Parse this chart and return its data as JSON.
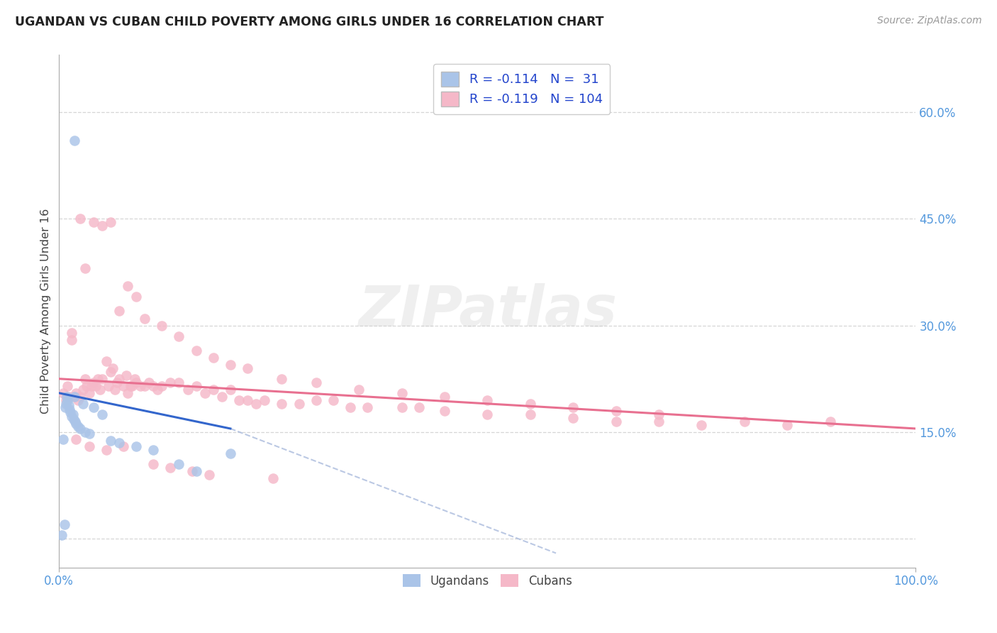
{
  "title": "UGANDAN VS CUBAN CHILD POVERTY AMONG GIRLS UNDER 16 CORRELATION CHART",
  "source": "Source: ZipAtlas.com",
  "ylabel": "Child Poverty Among Girls Under 16",
  "xlim": [
    0,
    1.0
  ],
  "ylim": [
    -0.04,
    0.68
  ],
  "x_ticks": [
    0.0,
    1.0
  ],
  "x_tick_labels": [
    "0.0%",
    "100.0%"
  ],
  "y_ticks": [
    0.0,
    0.15,
    0.3,
    0.45,
    0.6
  ],
  "y_tick_labels_right": [
    "",
    "15.0%",
    "30.0%",
    "45.0%",
    "60.0%"
  ],
  "ugandan_color": "#aac4e8",
  "cuban_color": "#f5b8c8",
  "ugandan_line_color": "#3366cc",
  "ugandan_line_dash_color": "#aabbdd",
  "cuban_line_color": "#e87090",
  "ugandan_R": -0.114,
  "ugandan_N": 31,
  "cuban_R": -0.119,
  "cuban_N": 104,
  "background_color": "#ffffff",
  "grid_color": "#cccccc",
  "watermark": "ZIPatlas",
  "ugandan_line_x0": 0.0,
  "ugandan_line_y0": 0.205,
  "ugandan_line_x1": 0.2,
  "ugandan_line_y1": 0.155,
  "ugandan_line_dash_x1": 0.58,
  "ugandan_line_dash_y1": -0.02,
  "cuban_line_x0": 0.0,
  "cuban_line_y0": 0.225,
  "cuban_line_x1": 1.0,
  "cuban_line_y1": 0.155,
  "ugandan_scatter_x": [
    0.003,
    0.005,
    0.006,
    0.007,
    0.008,
    0.009,
    0.01,
    0.011,
    0.012,
    0.013,
    0.015,
    0.016,
    0.017,
    0.018,
    0.019,
    0.02,
    0.022,
    0.025,
    0.028,
    0.03,
    0.035,
    0.04,
    0.05,
    0.06,
    0.07,
    0.09,
    0.11,
    0.14,
    0.16,
    0.2,
    0.018
  ],
  "ugandan_scatter_y": [
    0.005,
    0.14,
    0.02,
    0.185,
    0.19,
    0.2,
    0.195,
    0.188,
    0.182,
    0.178,
    0.172,
    0.175,
    0.168,
    0.2,
    0.165,
    0.162,
    0.158,
    0.155,
    0.19,
    0.15,
    0.148,
    0.185,
    0.175,
    0.138,
    0.135,
    0.13,
    0.125,
    0.105,
    0.095,
    0.12,
    0.56
  ],
  "cuban_scatter_x": [
    0.005,
    0.008,
    0.01,
    0.012,
    0.015,
    0.015,
    0.018,
    0.02,
    0.022,
    0.025,
    0.028,
    0.03,
    0.032,
    0.035,
    0.038,
    0.04,
    0.043,
    0.045,
    0.048,
    0.05,
    0.055,
    0.058,
    0.06,
    0.063,
    0.065,
    0.068,
    0.07,
    0.075,
    0.078,
    0.08,
    0.083,
    0.085,
    0.088,
    0.09,
    0.095,
    0.1,
    0.105,
    0.11,
    0.115,
    0.12,
    0.13,
    0.14,
    0.15,
    0.16,
    0.17,
    0.18,
    0.19,
    0.2,
    0.21,
    0.22,
    0.23,
    0.24,
    0.26,
    0.28,
    0.3,
    0.32,
    0.34,
    0.36,
    0.4,
    0.42,
    0.45,
    0.5,
    0.55,
    0.6,
    0.65,
    0.7,
    0.75,
    0.8,
    0.85,
    0.9,
    0.025,
    0.03,
    0.04,
    0.05,
    0.06,
    0.07,
    0.08,
    0.09,
    0.1,
    0.12,
    0.14,
    0.16,
    0.18,
    0.2,
    0.22,
    0.26,
    0.3,
    0.35,
    0.4,
    0.45,
    0.5,
    0.55,
    0.6,
    0.65,
    0.7,
    0.02,
    0.035,
    0.055,
    0.075,
    0.11,
    0.13,
    0.155,
    0.175,
    0.25
  ],
  "cuban_scatter_y": [
    0.205,
    0.195,
    0.215,
    0.2,
    0.28,
    0.29,
    0.2,
    0.205,
    0.195,
    0.2,
    0.21,
    0.225,
    0.215,
    0.205,
    0.215,
    0.22,
    0.215,
    0.225,
    0.21,
    0.225,
    0.25,
    0.215,
    0.235,
    0.24,
    0.21,
    0.22,
    0.225,
    0.215,
    0.23,
    0.205,
    0.215,
    0.215,
    0.225,
    0.22,
    0.215,
    0.215,
    0.22,
    0.215,
    0.21,
    0.215,
    0.22,
    0.22,
    0.21,
    0.215,
    0.205,
    0.21,
    0.2,
    0.21,
    0.195,
    0.195,
    0.19,
    0.195,
    0.19,
    0.19,
    0.195,
    0.195,
    0.185,
    0.185,
    0.185,
    0.185,
    0.18,
    0.175,
    0.175,
    0.17,
    0.165,
    0.165,
    0.16,
    0.165,
    0.16,
    0.165,
    0.45,
    0.38,
    0.445,
    0.44,
    0.445,
    0.32,
    0.355,
    0.34,
    0.31,
    0.3,
    0.285,
    0.265,
    0.255,
    0.245,
    0.24,
    0.225,
    0.22,
    0.21,
    0.205,
    0.2,
    0.195,
    0.19,
    0.185,
    0.18,
    0.175,
    0.14,
    0.13,
    0.125,
    0.13,
    0.105,
    0.1,
    0.095,
    0.09,
    0.085
  ]
}
